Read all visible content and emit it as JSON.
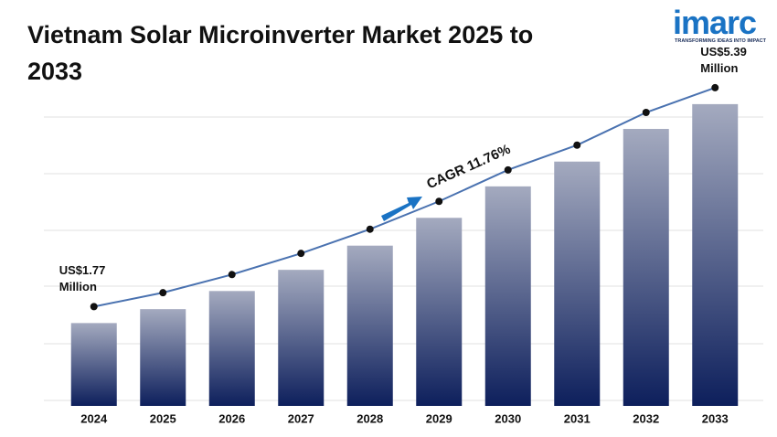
{
  "chart_data": {
    "type": "bar",
    "title": "Vietnam Solar Microinverter Market 2025 to 2033",
    "categories": [
      "2024",
      "2025",
      "2026",
      "2027",
      "2028",
      "2029",
      "2030",
      "2031",
      "2032",
      "2033"
    ],
    "values": [
      1.77,
      2.0,
      2.3,
      2.65,
      3.05,
      3.51,
      4.03,
      4.44,
      4.98,
      5.39
    ],
    "value_labels": [
      "US$1.77 Million",
      null,
      null,
      null,
      null,
      null,
      null,
      null,
      null,
      "US$5.39 Million"
    ],
    "annotation": "CAGR 11.76%",
    "ylim": [
      0.4,
      5.6
    ],
    "color": "#0d1f5c",
    "line_color": "#4a72b0",
    "logo": {
      "name": "imarc",
      "tagline": "TRANSFORMING IDEAS INTO IMPACT"
    }
  }
}
